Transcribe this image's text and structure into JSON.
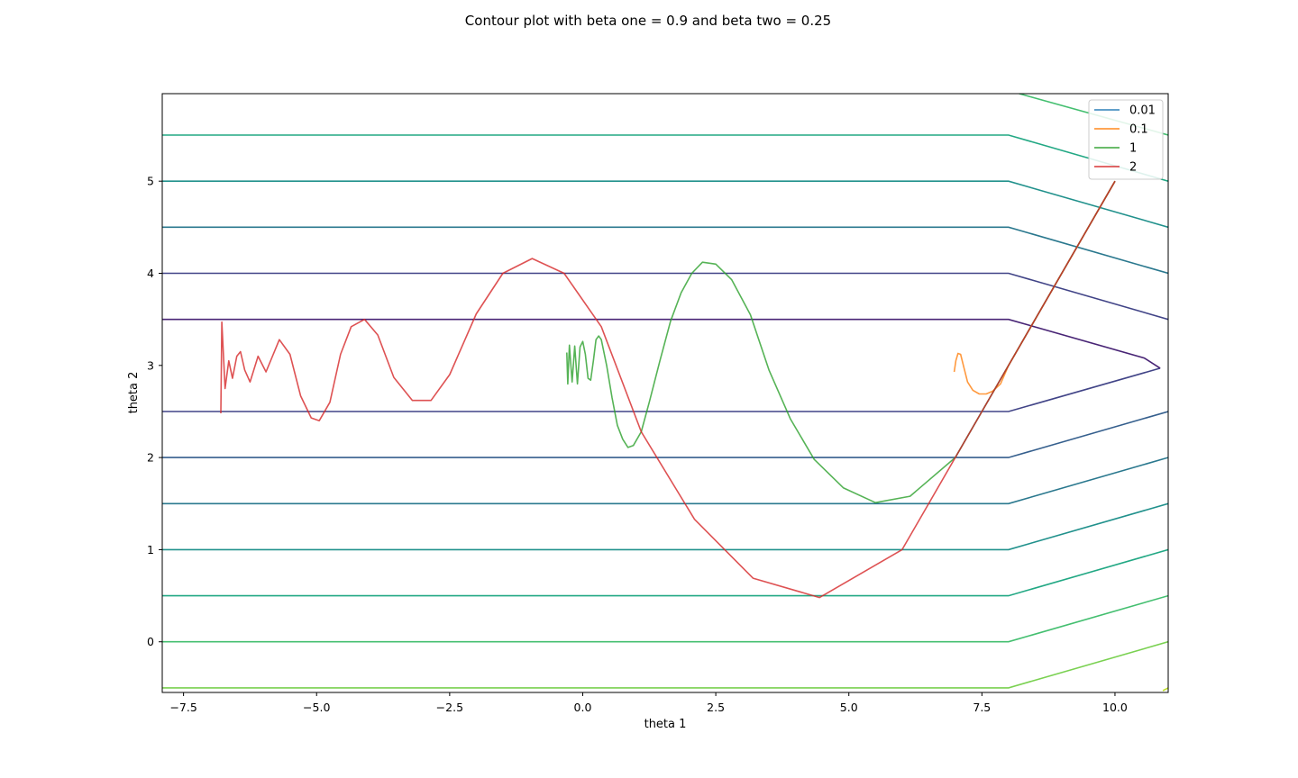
{
  "chart_data": {
    "type": "line",
    "title": "Contour plot with beta one = 0.9 and beta two = 0.25",
    "xlabel": "theta 1",
    "ylabel": "theta 2",
    "xlim": [
      -7.9,
      11.0
    ],
    "ylim": [
      -0.55,
      5.95
    ],
    "xticks": [
      -7.5,
      -5.0,
      -2.5,
      0.0,
      2.5,
      5.0,
      7.5,
      10.0
    ],
    "xtick_labels": [
      "−7.5",
      "−5.0",
      "−2.5",
      "0.0",
      "2.5",
      "5.0",
      "7.5",
      "10.0"
    ],
    "yticks": [
      0,
      1,
      2,
      3,
      4,
      5
    ],
    "ytick_labels": [
      "0",
      "1",
      "2",
      "3",
      "4",
      "5"
    ],
    "grid": false,
    "legend_placement": "top-right",
    "contours": [
      {
        "level": -0.5,
        "color": "#7ad151",
        "points": [
          [
            -7.9,
            -0.5
          ],
          [
            8.0,
            -0.5
          ],
          [
            11.0,
            0.0
          ]
        ]
      },
      {
        "level": 0.0,
        "color": "#44bf70",
        "points": [
          [
            -7.9,
            0.0
          ],
          [
            8.0,
            0.0
          ],
          [
            11.0,
            0.5
          ]
        ]
      },
      {
        "level": 0.5,
        "color": "#22a884",
        "points": [
          [
            -7.9,
            0.5
          ],
          [
            8.0,
            0.5
          ],
          [
            11.0,
            1.0
          ]
        ]
      },
      {
        "level": 1.0,
        "color": "#21918c",
        "points": [
          [
            -7.9,
            1.0
          ],
          [
            8.0,
            1.0
          ],
          [
            11.0,
            1.5
          ]
        ]
      },
      {
        "level": 1.5,
        "color": "#2a788e",
        "points": [
          [
            -7.9,
            1.5
          ],
          [
            8.0,
            1.5
          ],
          [
            11.0,
            2.0
          ]
        ]
      },
      {
        "level": 2.0,
        "color": "#355f8d",
        "points": [
          [
            -7.9,
            2.0
          ],
          [
            8.0,
            2.0
          ],
          [
            11.0,
            2.5
          ]
        ]
      },
      {
        "level": 2.5,
        "color": "#414487",
        "points": [
          [
            -7.9,
            2.5
          ],
          [
            8.0,
            2.5
          ],
          [
            10.85,
            2.97
          ]
        ]
      },
      {
        "level": 3.5,
        "color": "#482475",
        "points": [
          [
            -7.9,
            3.5
          ],
          [
            8.0,
            3.5
          ],
          [
            10.55,
            3.08
          ],
          [
            10.85,
            2.97
          ]
        ]
      },
      {
        "level": 4.0,
        "color": "#414487",
        "points": [
          [
            -7.9,
            4.0
          ],
          [
            8.0,
            4.0
          ],
          [
            11.0,
            3.5
          ]
        ]
      },
      {
        "level": 4.5,
        "color": "#2a788e",
        "points": [
          [
            -7.9,
            4.5
          ],
          [
            8.0,
            4.5
          ],
          [
            11.0,
            4.0
          ]
        ]
      },
      {
        "level": 5.0,
        "color": "#21918c",
        "points": [
          [
            -7.9,
            5.0
          ],
          [
            8.0,
            5.0
          ],
          [
            11.0,
            4.5
          ]
        ]
      },
      {
        "level": 5.5,
        "color": "#22a884",
        "points": [
          [
            -7.9,
            5.5
          ],
          [
            8.0,
            5.5
          ],
          [
            11.0,
            5.0
          ]
        ]
      },
      {
        "level": 6.0,
        "color": "#44bf70",
        "points": [
          [
            8.2,
            5.95
          ],
          [
            11.0,
            5.5
          ]
        ]
      },
      {
        "level": -1.0,
        "color": "#bddf26",
        "points": [
          [
            10.9,
            -0.53
          ],
          [
            11.0,
            -0.5
          ]
        ]
      }
    ],
    "series": [
      {
        "name": "0.01",
        "color": "#1f77b4",
        "points": [
          [
            7.0,
            2.0
          ],
          [
            10.0,
            5.0
          ]
        ]
      },
      {
        "name": "0.1",
        "color": "#ff7f0e",
        "points": [
          [
            6.98,
            2.93
          ],
          [
            7.01,
            3.05
          ],
          [
            7.05,
            3.13
          ],
          [
            7.1,
            3.12
          ],
          [
            7.16,
            2.98
          ],
          [
            7.23,
            2.82
          ],
          [
            7.33,
            2.73
          ],
          [
            7.45,
            2.69
          ],
          [
            7.58,
            2.69
          ],
          [
            7.7,
            2.72
          ],
          [
            7.85,
            2.8
          ],
          [
            8.0,
            3.0
          ],
          [
            10.0,
            5.0
          ]
        ]
      },
      {
        "name": "1",
        "color": "#2ca02c",
        "points": [
          [
            -0.3,
            3.14
          ],
          [
            -0.28,
            2.8
          ],
          [
            -0.25,
            3.22
          ],
          [
            -0.2,
            2.82
          ],
          [
            -0.15,
            3.21
          ],
          [
            -0.1,
            2.8
          ],
          [
            -0.05,
            3.2
          ],
          [
            0.0,
            3.26
          ],
          [
            0.05,
            3.12
          ],
          [
            0.1,
            2.86
          ],
          [
            0.15,
            2.84
          ],
          [
            0.2,
            3.05
          ],
          [
            0.25,
            3.28
          ],
          [
            0.3,
            3.32
          ],
          [
            0.35,
            3.28
          ],
          [
            0.45,
            3.0
          ],
          [
            0.55,
            2.65
          ],
          [
            0.65,
            2.35
          ],
          [
            0.75,
            2.2
          ],
          [
            0.85,
            2.11
          ],
          [
            0.95,
            2.13
          ],
          [
            1.1,
            2.28
          ],
          [
            1.25,
            2.6
          ],
          [
            1.45,
            3.05
          ],
          [
            1.65,
            3.48
          ],
          [
            1.85,
            3.79
          ],
          [
            2.05,
            4.0
          ],
          [
            2.25,
            4.12
          ],
          [
            2.5,
            4.1
          ],
          [
            2.8,
            3.93
          ],
          [
            3.15,
            3.55
          ],
          [
            3.5,
            2.95
          ],
          [
            3.9,
            2.42
          ],
          [
            4.35,
            1.98
          ],
          [
            4.9,
            1.67
          ],
          [
            5.5,
            1.51
          ],
          [
            6.15,
            1.58
          ],
          [
            7.0,
            2.0
          ],
          [
            10.0,
            5.0
          ]
        ]
      },
      {
        "name": "2",
        "color": "#d62728",
        "points": [
          [
            -6.8,
            2.48
          ],
          [
            -6.78,
            3.47
          ],
          [
            -6.72,
            2.75
          ],
          [
            -6.65,
            3.05
          ],
          [
            -6.58,
            2.86
          ],
          [
            -6.5,
            3.1
          ],
          [
            -6.43,
            3.15
          ],
          [
            -6.35,
            2.95
          ],
          [
            -6.25,
            2.82
          ],
          [
            -6.1,
            3.1
          ],
          [
            -5.95,
            2.93
          ],
          [
            -5.7,
            3.28
          ],
          [
            -5.5,
            3.12
          ],
          [
            -5.3,
            2.67
          ],
          [
            -5.1,
            2.43
          ],
          [
            -4.95,
            2.4
          ],
          [
            -4.75,
            2.6
          ],
          [
            -4.55,
            3.12
          ],
          [
            -4.35,
            3.42
          ],
          [
            -4.1,
            3.5
          ],
          [
            -3.85,
            3.33
          ],
          [
            -3.55,
            2.87
          ],
          [
            -3.2,
            2.62
          ],
          [
            -2.85,
            2.62
          ],
          [
            -2.5,
            2.9
          ],
          [
            -2.0,
            3.56
          ],
          [
            -1.5,
            4.0
          ],
          [
            -0.95,
            4.16
          ],
          [
            -0.35,
            4.0
          ],
          [
            0.35,
            3.42
          ],
          [
            1.1,
            2.28
          ],
          [
            2.1,
            1.33
          ],
          [
            3.2,
            0.69
          ],
          [
            4.45,
            0.48
          ],
          [
            6.0,
            1.0
          ],
          [
            7.0,
            2.0
          ],
          [
            10.0,
            5.0
          ]
        ]
      }
    ]
  }
}
